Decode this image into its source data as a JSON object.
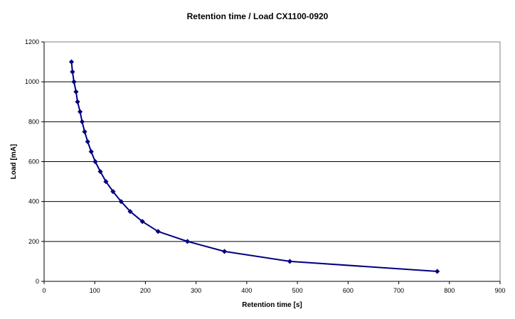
{
  "chart_data": {
    "type": "line",
    "title": "Retention time / Load CX1100-0920",
    "xlabel": "Retention time [s]",
    "ylabel": "Load [mA]",
    "xlim": [
      0,
      900
    ],
    "ylim": [
      0,
      1200
    ],
    "x_ticks": [
      0,
      100,
      200,
      300,
      400,
      500,
      600,
      700,
      800,
      900
    ],
    "y_ticks": [
      0,
      200,
      400,
      600,
      800,
      1000,
      1200
    ],
    "grid": "horizontal",
    "legend": "none",
    "series": [
      {
        "name": "Retention time / Load",
        "color": "#000080",
        "marker": "diamond",
        "x": [
          54,
          56,
          59,
          63,
          66,
          71,
          75,
          80,
          86,
          93,
          101,
          111,
          122,
          136,
          152,
          170,
          194,
          225,
          283,
          356,
          485,
          776
        ],
        "y": [
          1100,
          1050,
          1000,
          950,
          900,
          850,
          800,
          750,
          700,
          650,
          600,
          550,
          500,
          450,
          400,
          350,
          300,
          250,
          200,
          150,
          100,
          50
        ]
      }
    ]
  }
}
